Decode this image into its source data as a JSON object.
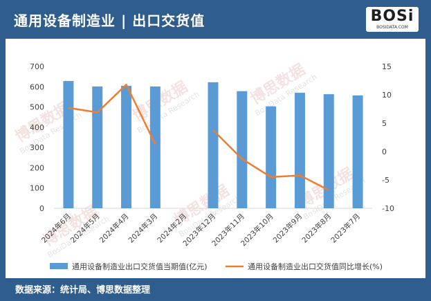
{
  "header": {
    "title": "通用设备制造业 | 出口交货值"
  },
  "logo": {
    "text": "BOSi",
    "sub": "BOSIDATA.COM"
  },
  "watermarks": {
    "cn": "博思数据",
    "en": "BosiData Research"
  },
  "footer": {
    "source": "数据来源：统计局、博思数据整理"
  },
  "colors": {
    "bar": "#5b9bd5",
    "line": "#ed7d31",
    "header_bg": "#2f5d8e"
  },
  "chart_data": {
    "type": "bar",
    "categories": [
      "2024年6月",
      "2024年5月",
      "2024年4月",
      "2024年3月",
      "2024年2月",
      "2023年12月",
      "2023年11月",
      "2023年10月",
      "2023年9月",
      "2023年8月",
      "2023年7月"
    ],
    "series": [
      {
        "name": "通用设备制造业出口交货值当期值(亿元)",
        "type": "bar",
        "axis": "left",
        "values": [
          628,
          601,
          604,
          601,
          null,
          622,
          578,
          503,
          570,
          563,
          557
        ]
      },
      {
        "name": "通用设备制造业出口交货值同比增长(%)",
        "type": "line",
        "axis": "right",
        "values": [
          7.7,
          6.9,
          11.8,
          1.3,
          null,
          3.8,
          -1.3,
          -4.5,
          -4.2,
          -6.8,
          null
        ]
      }
    ],
    "y_left": {
      "min": 0,
      "max": 700,
      "ticks": [
        0,
        100,
        200,
        300,
        400,
        500,
        600,
        700
      ]
    },
    "y_right": {
      "min": -10,
      "max": 15,
      "ticks": [
        -10,
        -5,
        0,
        5,
        10,
        15
      ]
    },
    "grid": false,
    "legend_position": "bottom"
  }
}
